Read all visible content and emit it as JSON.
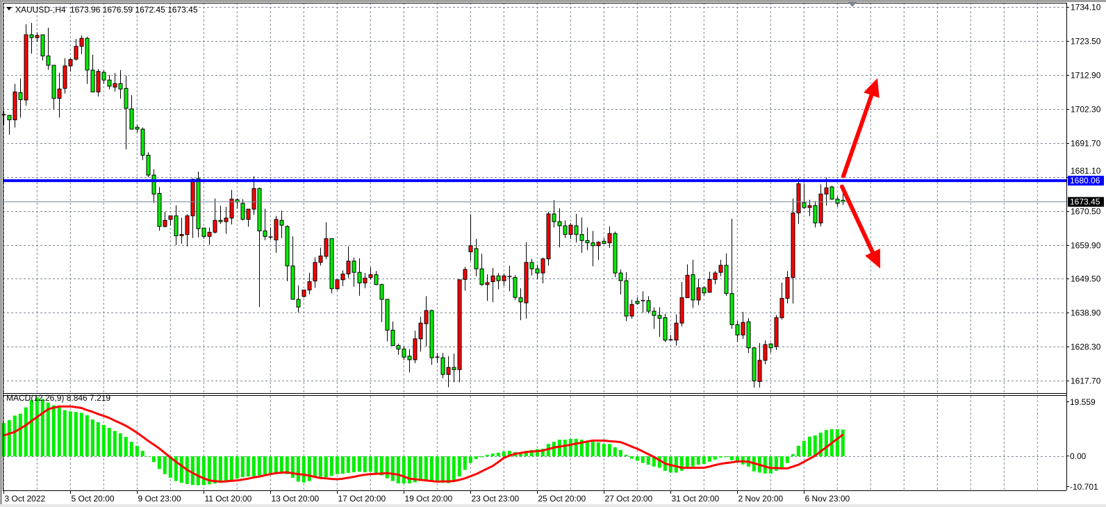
{
  "header": {
    "menu_icon": "triangle-down-icon",
    "symbol": "XAUUSD-,H4",
    "ohlc": "1673.96 1676.59 1672.45 1673.45"
  },
  "indicator": {
    "label": "MACD(12,26,9) 8.846 7.219"
  },
  "colors": {
    "bull_body": "#ff0000",
    "bear_body": "#00ee00",
    "grid": "#7b8794",
    "level_line": "#0000ff",
    "bid_line": "#778899",
    "macd_hist": "#00ee00",
    "signal_line": "#ff0000",
    "arrows": "#ff0000"
  },
  "price_axis": {
    "labels": [
      "1734.10",
      "1723.50",
      "1712.90",
      "1702.30",
      "1691.70",
      "1681.10",
      "1670.50",
      "1659.90",
      "1649.50",
      "1638.90",
      "1628.30",
      "1617.70"
    ],
    "level_label": "1680.06",
    "bid_label": "1673.45"
  },
  "macd_axis": {
    "labels": [
      "19.559",
      "0.00",
      "-10.701"
    ]
  },
  "time_axis": {
    "labels": [
      "3 Oct 2022",
      "5 Oct 20:00",
      "9 Oct 23:00",
      "11 Oct 20:00",
      "13 Oct 20:00",
      "17 Oct 20:00",
      "19 Oct 20:00",
      "23 Oct 23:00",
      "25 Oct 20:00",
      "27 Oct 20:00",
      "31 Oct 20:00",
      "2 Nov 20:00",
      "6 Nov 23:00"
    ]
  },
  "chart_data": {
    "type": "candlestick",
    "symbol": "XAUUSD-",
    "timeframe": "H4",
    "ylim": [
      1617.7,
      1734.1
    ],
    "grid": true,
    "horizontal_level": 1680.06,
    "bid": 1673.45,
    "annotations": [
      {
        "type": "arrow",
        "direction": "up",
        "from_price": 1681.5,
        "to_price": 1712.0
      },
      {
        "type": "arrow",
        "direction": "down",
        "from_price": 1678.2,
        "to_price": 1652.7
      }
    ],
    "ohlc": [
      [
        1700.6,
        1701.8,
        1697.4,
        1700.4
      ],
      [
        1700.4,
        1700.4,
        1694.4,
        1699.0
      ],
      [
        1699.0,
        1710.2,
        1696.6,
        1707.7
      ],
      [
        1707.5,
        1711.9,
        1699.7,
        1705.3
      ],
      [
        1705.2,
        1728.8,
        1703.4,
        1725.5
      ],
      [
        1725.5,
        1729.2,
        1719.6,
        1724.6
      ],
      [
        1724.6,
        1726.2,
        1723.4,
        1725.3
      ],
      [
        1725.5,
        1725.5,
        1717.5,
        1718.9
      ],
      [
        1718.9,
        1727.7,
        1714.6,
        1716.0
      ],
      [
        1716.0,
        1716.0,
        1702.3,
        1705.7
      ],
      [
        1705.7,
        1713.7,
        1699.7,
        1708.6
      ],
      [
        1708.8,
        1718.2,
        1707.2,
        1715.8
      ],
      [
        1715.8,
        1718.2,
        1714.0,
        1717.8
      ],
      [
        1717.9,
        1724.2,
        1717.5,
        1721.9
      ],
      [
        1721.9,
        1725.3,
        1719.5,
        1724.4
      ],
      [
        1724.4,
        1724.9,
        1710.2,
        1714.5
      ],
      [
        1714.5,
        1719.3,
        1707.7,
        1707.7
      ],
      [
        1707.7,
        1714.8,
        1706.3,
        1714.1
      ],
      [
        1713.8,
        1714.5,
        1710.2,
        1711.4
      ],
      [
        1711.4,
        1713.0,
        1708.5,
        1709.5
      ],
      [
        1709.2,
        1713.6,
        1707.8,
        1710.3
      ],
      [
        1710.3,
        1714.5,
        1705.6,
        1708.6
      ],
      [
        1708.8,
        1712.8,
        1689.8,
        1702.6
      ],
      [
        1702.4,
        1706.7,
        1696.1,
        1696.1
      ],
      [
        1696.7,
        1697.4,
        1695.0,
        1696.1
      ],
      [
        1696.1,
        1696.6,
        1686.5,
        1688.0
      ],
      [
        1688.0,
        1688.9,
        1681.2,
        1681.8
      ],
      [
        1681.8,
        1683.6,
        1673.1,
        1675.9
      ],
      [
        1676.1,
        1678.1,
        1664.5,
        1665.8
      ],
      [
        1665.8,
        1670.4,
        1665.5,
        1667.7
      ],
      [
        1668.0,
        1669.1,
        1666.1,
        1669.1
      ],
      [
        1669.1,
        1672.4,
        1660.0,
        1662.9
      ],
      [
        1662.9,
        1668.5,
        1660.4,
        1663.3
      ],
      [
        1663.3,
        1669.6,
        1659.6,
        1669.1
      ],
      [
        1669.1,
        1680.7,
        1662.2,
        1680.5
      ],
      [
        1680.7,
        1682.9,
        1662.4,
        1665.1
      ],
      [
        1665.3,
        1665.3,
        1662.0,
        1662.7
      ],
      [
        1662.7,
        1665.5,
        1660.1,
        1664.0
      ],
      [
        1664.0,
        1674.5,
        1663.6,
        1667.7
      ],
      [
        1667.7,
        1672.3,
        1666.6,
        1667.3
      ],
      [
        1667.3,
        1671.9,
        1663.5,
        1668.4
      ],
      [
        1668.4,
        1677.2,
        1666.4,
        1674.3
      ],
      [
        1674.1,
        1674.6,
        1671.4,
        1673.4
      ],
      [
        1673.0,
        1674.3,
        1667.7,
        1668.0
      ],
      [
        1668.0,
        1671.2,
        1665.7,
        1671.2
      ],
      [
        1671.2,
        1681.4,
        1669.4,
        1677.6
      ],
      [
        1677.6,
        1677.9,
        1640.7,
        1664.4
      ],
      [
        1664.4,
        1671.3,
        1661.5,
        1662.7
      ],
      [
        1662.5,
        1665.5,
        1661.7,
        1662.4
      ],
      [
        1661.6,
        1669.1,
        1657.6,
        1668.0
      ],
      [
        1667.7,
        1670.7,
        1662.2,
        1666.2
      ],
      [
        1665.8,
        1666.2,
        1648.7,
        1653.5
      ],
      [
        1653.5,
        1662.7,
        1643.1,
        1643.1
      ],
      [
        1643.1,
        1647.4,
        1639.0,
        1640.7
      ],
      [
        1644.0,
        1646.0,
        1643.6,
        1646.0
      ],
      [
        1646.0,
        1651.4,
        1644.7,
        1648.6
      ],
      [
        1648.8,
        1656.2,
        1646.7,
        1654.6
      ],
      [
        1654.6,
        1659.2,
        1653.6,
        1656.6
      ],
      [
        1656.5,
        1667.1,
        1655.6,
        1662.0
      ],
      [
        1662.0,
        1662.0,
        1645.0,
        1646.4
      ],
      [
        1646.4,
        1649.2,
        1646.0,
        1649.2
      ],
      [
        1649.2,
        1652.1,
        1647.2,
        1651.0
      ],
      [
        1651.0,
        1659.6,
        1649.7,
        1655.0
      ],
      [
        1655.0,
        1656.1,
        1647.0,
        1651.5
      ],
      [
        1651.5,
        1655.9,
        1644.2,
        1648.2
      ],
      [
        1648.2,
        1651.3,
        1646.6,
        1649.7
      ],
      [
        1649.9,
        1653.1,
        1649.2,
        1650.8
      ],
      [
        1650.8,
        1651.9,
        1647.5,
        1647.7
      ],
      [
        1647.7,
        1648.0,
        1636.0,
        1643.1
      ],
      [
        1643.1,
        1643.1,
        1630.0,
        1633.5
      ],
      [
        1633.5,
        1636.2,
        1628.7,
        1628.7
      ],
      [
        1628.7,
        1629.3,
        1625.8,
        1627.6
      ],
      [
        1627.6,
        1628.4,
        1624.2,
        1625.1
      ],
      [
        1625.4,
        1627.6,
        1620.3,
        1624.3
      ],
      [
        1624.3,
        1633.3,
        1623.2,
        1630.8
      ],
      [
        1630.8,
        1637.7,
        1626.8,
        1635.7
      ],
      [
        1635.5,
        1644.1,
        1628.4,
        1639.6
      ],
      [
        1639.6,
        1639.9,
        1622.7,
        1624.9
      ],
      [
        1625.1,
        1626.4,
        1623.3,
        1625.1
      ],
      [
        1624.9,
        1626.4,
        1618.5,
        1619.7
      ],
      [
        1619.7,
        1625.4,
        1615.7,
        1621.9
      ],
      [
        1621.9,
        1626.2,
        1617.3,
        1621.2
      ],
      [
        1621.2,
        1649.2,
        1617.3,
        1649.2
      ],
      [
        1649.3,
        1653.2,
        1645.8,
        1652.4
      ],
      [
        1657.9,
        1669.6,
        1655.1,
        1659.8
      ],
      [
        1658.9,
        1661.9,
        1650.3,
        1652.6
      ],
      [
        1652.6,
        1657.3,
        1647.3,
        1647.7
      ],
      [
        1647.7,
        1650.9,
        1642.6,
        1648.3
      ],
      [
        1648.6,
        1652.9,
        1642.2,
        1650.4
      ],
      [
        1650.4,
        1651.3,
        1646.2,
        1648.9
      ],
      [
        1648.9,
        1651.1,
        1647.3,
        1650.4
      ],
      [
        1650.2,
        1653.5,
        1645.6,
        1650.2
      ],
      [
        1649.9,
        1650.6,
        1642.9,
        1643.7
      ],
      [
        1643.6,
        1646.6,
        1636.6,
        1642.3
      ],
      [
        1642.0,
        1660.9,
        1637.1,
        1654.6
      ],
      [
        1654.6,
        1655.7,
        1650.5,
        1652.6
      ],
      [
        1652.6,
        1653.9,
        1649.4,
        1651.3
      ],
      [
        1651.3,
        1656.1,
        1648.1,
        1655.7
      ],
      [
        1655.7,
        1670.4,
        1653.6,
        1669.7
      ],
      [
        1669.7,
        1674.0,
        1665.5,
        1667.3
      ],
      [
        1667.3,
        1671.5,
        1659.3,
        1666.0
      ],
      [
        1666.0,
        1667.7,
        1662.2,
        1663.3
      ],
      [
        1663.3,
        1666.9,
        1661.9,
        1666.2
      ],
      [
        1666.0,
        1669.7,
        1660.8,
        1663.3
      ],
      [
        1663.3,
        1668.6,
        1657.6,
        1661.4
      ],
      [
        1661.4,
        1665.5,
        1658.4,
        1660.7
      ],
      [
        1660.7,
        1664.4,
        1653.4,
        1659.8
      ],
      [
        1659.8,
        1661.2,
        1655.4,
        1660.9
      ],
      [
        1661.2,
        1662.2,
        1660.3,
        1660.5
      ],
      [
        1660.7,
        1665.8,
        1659.1,
        1663.6
      ],
      [
        1663.6,
        1664.2,
        1650.0,
        1651.3
      ],
      [
        1651.3,
        1652.4,
        1644.6,
        1648.9
      ],
      [
        1648.9,
        1651.6,
        1636.3,
        1637.9
      ],
      [
        1637.9,
        1643.0,
        1637.1,
        1641.5
      ],
      [
        1642.5,
        1643.8,
        1641.4,
        1641.8
      ],
      [
        1642.7,
        1645.6,
        1638.9,
        1642.6
      ],
      [
        1642.7,
        1644.1,
        1638.7,
        1639.4
      ],
      [
        1639.4,
        1640.6,
        1633.9,
        1638.1
      ],
      [
        1638.1,
        1640.6,
        1631.4,
        1637.2
      ],
      [
        1637.4,
        1638.6,
        1629.8,
        1630.4
      ],
      [
        1630.5,
        1632.0,
        1630.2,
        1630.4
      ],
      [
        1630.4,
        1638.4,
        1628.7,
        1635.7
      ],
      [
        1635.7,
        1648.5,
        1634.7,
        1643.6
      ],
      [
        1643.6,
        1654.0,
        1643.6,
        1650.6
      ],
      [
        1650.8,
        1655.4,
        1640.4,
        1642.9
      ],
      [
        1642.9,
        1649.5,
        1641.3,
        1646.7
      ],
      [
        1646.7,
        1647.2,
        1644.2,
        1645.1
      ],
      [
        1645.3,
        1651.7,
        1645.1,
        1649.3
      ],
      [
        1649.3,
        1651.9,
        1647.8,
        1651.3
      ],
      [
        1651.5,
        1655.4,
        1650.3,
        1653.7
      ],
      [
        1653.7,
        1657.4,
        1644.2,
        1644.9
      ],
      [
        1644.9,
        1668.2,
        1633.9,
        1635.2
      ],
      [
        1635.2,
        1636.3,
        1629.9,
        1632.0
      ],
      [
        1632.0,
        1639.2,
        1630.8,
        1635.9
      ],
      [
        1636.1,
        1637.2,
        1626.4,
        1628.0
      ],
      [
        1628.0,
        1628.0,
        1615.6,
        1617.7
      ],
      [
        1617.5,
        1629.5,
        1615.6,
        1624.1
      ],
      [
        1624.1,
        1630.3,
        1622.9,
        1629.0
      ],
      [
        1629.2,
        1629.5,
        1626.5,
        1628.0
      ],
      [
        1628.4,
        1638.2,
        1627.3,
        1637.4
      ],
      [
        1637.4,
        1648.3,
        1636.8,
        1643.4
      ],
      [
        1643.4,
        1651.9,
        1641.8,
        1649.9
      ],
      [
        1649.9,
        1674.5,
        1641.8,
        1670.0
      ],
      [
        1670.0,
        1680.7,
        1666.6,
        1679.1
      ],
      [
        1673.2,
        1679.1,
        1671.2,
        1671.7
      ],
      [
        1671.7,
        1674.1,
        1669.0,
        1672.3
      ],
      [
        1672.3,
        1673.7,
        1665.5,
        1666.9
      ],
      [
        1666.9,
        1678.9,
        1665.8,
        1675.9
      ],
      [
        1675.9,
        1681.0,
        1672.3,
        1677.8
      ],
      [
        1678.1,
        1678.5,
        1674.1,
        1674.3
      ],
      [
        1674.3,
        1675.2,
        1671.9,
        1673.0
      ],
      [
        1673.96,
        1676.59,
        1672.45,
        1673.45
      ]
    ],
    "macd": {
      "params": "12,26,9",
      "ylim": [
        -10.701,
        19.559
      ],
      "histogram": [
        11.0,
        12.0,
        13.5,
        14.1,
        16.2,
        18.7,
        19.5,
        19.0,
        17.8,
        16.9,
        16.2,
        15.3,
        14.9,
        14.7,
        14.4,
        13.6,
        12.2,
        11.3,
        10.4,
        9.4,
        8.4,
        7.6,
        6.4,
        4.8,
        3.5,
        1.8,
        0.0,
        -1.9,
        -4.2,
        -5.9,
        -7.1,
        -8.2,
        -8.8,
        -9.2,
        -9.5,
        -9.6,
        -9.5,
        -9.3,
        -9.0,
        -8.8,
        -8.5,
        -8.0,
        -7.4,
        -6.9,
        -6.7,
        -6.6,
        -6.3,
        -6.2,
        -5.8,
        -5.6,
        -5.8,
        -5.9,
        -7.1,
        -8.4,
        -8.7,
        -8.2,
        -6.7,
        -6.8,
        -6.9,
        -6.5,
        -5.9,
        -5.8,
        -5.5,
        -5.3,
        -5.1,
        -5.3,
        -5.1,
        -5.9,
        -6.3,
        -7.3,
        -8.2,
        -9.0,
        -9.0,
        -9.0,
        -8.6,
        -8.2,
        -8.2,
        -8.4,
        -8.6,
        -8.8,
        -8.9,
        -8.0,
        -6.7,
        -4.5,
        -2.2,
        -0.9,
        -0.3,
        0.5,
        0.9,
        1.2,
        1.6,
        1.8,
        1.4,
        1.0,
        1.8,
        2.1,
        2.4,
        2.5,
        4.1,
        4.8,
        5.5,
        5.5,
        5.8,
        5.8,
        5.5,
        5.1,
        4.8,
        4.6,
        4.1,
        4.1,
        3.0,
        2.1,
        0.5,
        -0.8,
        -1.5,
        -2.2,
        -2.8,
        -3.4,
        -3.8,
        -4.8,
        -5.4,
        -5.4,
        -4.8,
        -3.8,
        -3.4,
        -2.8,
        -2.5,
        -1.8,
        -1.1,
        -0.4,
        -0.3,
        -1.3,
        -2.1,
        -2.7,
        -3.4,
        -5.0,
        -5.4,
        -5.7,
        -5.7,
        -4.8,
        -3.7,
        -2.2,
        0.7,
        3.5,
        5.1,
        6.5,
        6.9,
        7.8,
        8.7,
        9.0,
        9.0,
        8.846
      ],
      "signal": [
        6.9,
        7.5,
        8.1,
        9.2,
        10.3,
        11.7,
        13.0,
        14.3,
        15.6,
        16.1,
        16.5,
        16.5,
        16.5,
        16.3,
        16.0,
        15.3,
        14.7,
        14.0,
        13.4,
        12.7,
        11.8,
        11.0,
        10.1,
        9.0,
        7.8,
        6.5,
        5.1,
        3.9,
        2.6,
        1.1,
        -0.4,
        -1.8,
        -3.1,
        -4.5,
        -5.5,
        -6.5,
        -7.3,
        -8.0,
        -8.2,
        -8.4,
        -8.3,
        -8.1,
        -8.0,
        -7.7,
        -7.4,
        -7.0,
        -6.7,
        -6.3,
        -5.9,
        -5.6,
        -5.4,
        -5.3,
        -5.6,
        -5.9,
        -6.1,
        -6.4,
        -6.8,
        -7.2,
        -7.3,
        -7.5,
        -7.6,
        -7.4,
        -7.1,
        -6.8,
        -6.4,
        -6.1,
        -5.9,
        -5.8,
        -5.7,
        -5.6,
        -5.8,
        -6.1,
        -6.7,
        -7.4,
        -7.6,
        -7.8,
        -8.0,
        -8.2,
        -8.4,
        -8.3,
        -8.3,
        -8.2,
        -7.8,
        -7.3,
        -6.6,
        -5.9,
        -5.0,
        -4.1,
        -3.2,
        -1.9,
        -0.5,
        0.2,
        0.8,
        1.1,
        1.4,
        1.6,
        1.7,
        1.9,
        2.4,
        2.9,
        3.2,
        3.5,
        3.8,
        4.2,
        4.5,
        4.9,
        5.2,
        5.2,
        5.2,
        5.0,
        4.9,
        4.7,
        4.0,
        3.2,
        2.5,
        1.6,
        0.7,
        -0.2,
        -1.3,
        -2.4,
        -2.9,
        -3.3,
        -3.8,
        -3.8,
        -3.8,
        -3.8,
        -3.8,
        -3.4,
        -2.9,
        -2.5,
        -2.2,
        -2.0,
        -1.7,
        -1.7,
        -1.8,
        -2.3,
        -2.8,
        -3.4,
        -3.9,
        -3.9,
        -4.0,
        -4.0,
        -3.4,
        -2.8,
        -1.8,
        -0.8,
        0.2,
        1.6,
        3.0,
        4.4,
        5.8,
        7.219
      ]
    }
  }
}
